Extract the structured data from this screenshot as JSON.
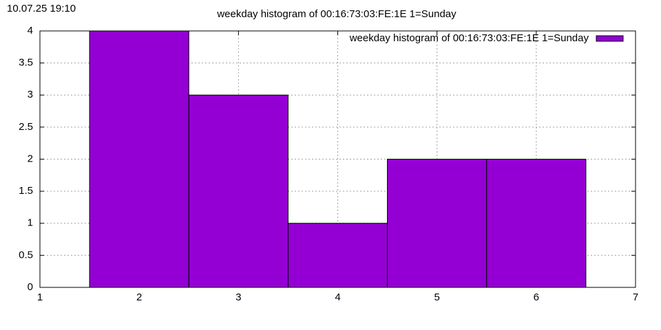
{
  "timestamp": "10.07.25 19:10",
  "chart_data": {
    "type": "histogram",
    "title": "weekday histogram of 00:16:73:03:FE:1E 1=Sunday",
    "series": [
      {
        "name": "weekday histogram of 00:16:73:03:FE:1E 1=Sunday",
        "color": "#9400d3",
        "bins": [
          1.5,
          2.5,
          3.5,
          4.5,
          5.5,
          6.5
        ],
        "values": [
          4,
          3,
          1,
          2,
          2
        ]
      }
    ],
    "xlim": [
      1,
      7
    ],
    "xticks": [
      1,
      2,
      3,
      4,
      5,
      6,
      7
    ],
    "ylim": [
      0,
      4
    ],
    "yticks": [
      0,
      0.5,
      1,
      1.5,
      2,
      2.5,
      3,
      3.5,
      4
    ],
    "grid": true,
    "legend": "top-right"
  }
}
